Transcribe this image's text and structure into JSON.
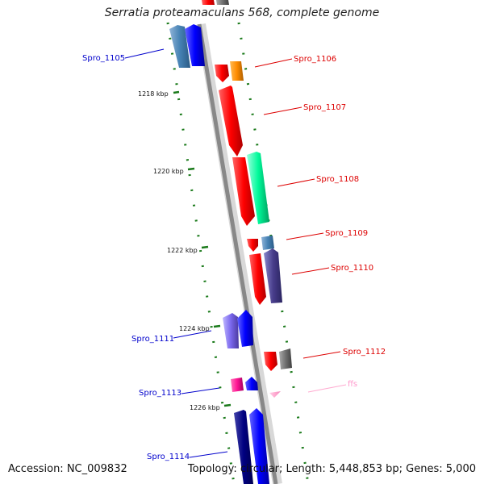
{
  "title": "Serratia proteamaculans 568, complete genome",
  "footer": {
    "accession": "Accession: NC_009832",
    "topology": "Topology: circular; Length: 5,448,853 bp; Genes: 5,000"
  },
  "ticks": [
    "1218 kbp",
    "1220 kbp",
    "1222 kbp",
    "1224 kbp",
    "1226 kbp"
  ],
  "genes": [
    {
      "label": "Spro_1105",
      "color": "#0000cc"
    },
    {
      "label": "Spro_1106",
      "color": "#dd0000"
    },
    {
      "label": "Spro_1107",
      "color": "#dd0000"
    },
    {
      "label": "Spro_1108",
      "color": "#dd0000"
    },
    {
      "label": "Spro_1109",
      "color": "#dd0000"
    },
    {
      "label": "Spro_1110",
      "color": "#dd0000"
    },
    {
      "label": "Spro_1111",
      "color": "#0000cc"
    },
    {
      "label": "Spro_1112",
      "color": "#dd0000"
    },
    {
      "label": "Spro_1113",
      "color": "#0000cc"
    },
    {
      "label": "ffs",
      "color": "#ff88cc"
    },
    {
      "label": "Spro_1114",
      "color": "#0000cc"
    }
  ]
}
